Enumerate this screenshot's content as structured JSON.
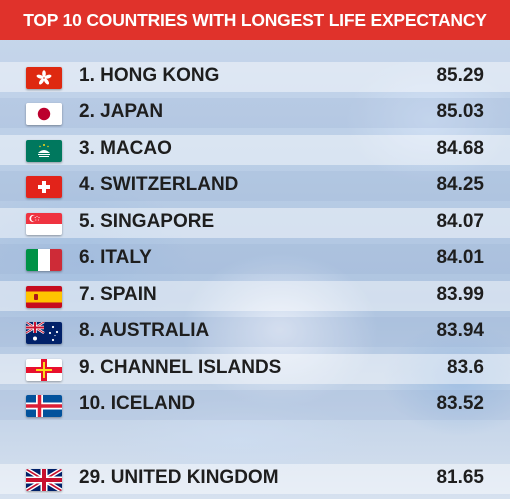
{
  "chart_data": {
    "type": "table",
    "title": "TOP 10 COUNTRIES WITH LONGEST LIFE EXPECTANCY",
    "rows": [
      {
        "label": "1. HONG KONG",
        "value": "85.29",
        "flag": "hong-kong-flag-icon"
      },
      {
        "label": "2. JAPAN",
        "value": "85.03",
        "flag": "japan-flag-icon"
      },
      {
        "label": "3. MACAO",
        "value": "84.68",
        "flag": "macao-flag-icon"
      },
      {
        "label": "4. SWITZERLAND",
        "value": "84.25",
        "flag": "switzerland-flag-icon"
      },
      {
        "label": "5. SINGAPORE",
        "value": "84.07",
        "flag": "singapore-flag-icon"
      },
      {
        "label": "6. ITALY",
        "value": "84.01",
        "flag": "italy-flag-icon"
      },
      {
        "label": "7. SPAIN",
        "value": "83.99",
        "flag": "spain-flag-icon"
      },
      {
        "label": "8. AUSTRALIA",
        "value": "83.94",
        "flag": "australia-flag-icon"
      },
      {
        "label": "9. CHANNEL ISLANDS",
        "value": "83.6",
        "flag": "channel-islands-flag-icon"
      },
      {
        "label": "10. ICELAND",
        "value": "83.52",
        "flag": "iceland-flag-icon"
      },
      {
        "label": "29. UNITED KINGDOM",
        "value": "81.65",
        "flag": "united-kingdom-flag-icon"
      }
    ],
    "colors": {
      "title_bar": "#e0322b",
      "title_text": "#ffffff",
      "row_text": "#1e1e1e"
    }
  }
}
